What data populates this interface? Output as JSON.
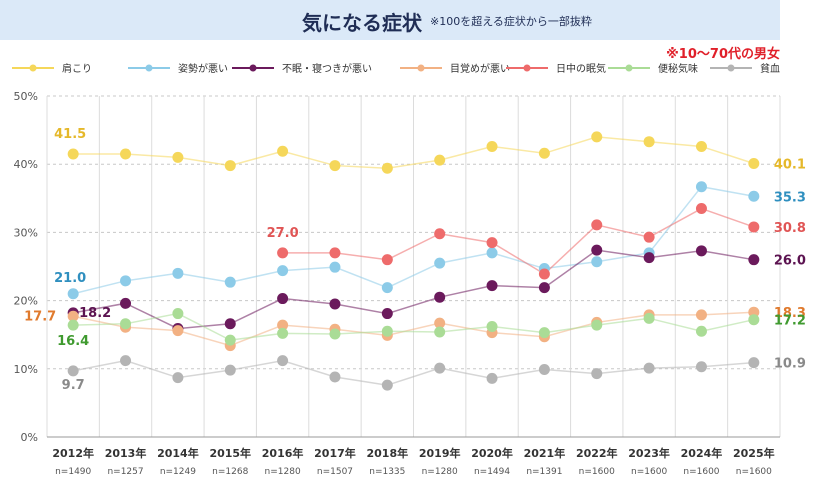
{
  "header": {
    "title": "気になる症状",
    "note": "※100を超える症状から一部抜粋",
    "subtitle": "※10～70代の男女"
  },
  "chart_data": {
    "type": "line",
    "title": "気になる症状",
    "ylim": [
      0,
      50
    ],
    "yticks": [
      "0%",
      "10%",
      "20%",
      "30%",
      "40%",
      "50%"
    ],
    "categories": [
      "2012年",
      "2013年",
      "2014年",
      "2015年",
      "2016年",
      "2017年",
      "2018年",
      "2019年",
      "2020年",
      "2021年",
      "2022年",
      "2023年",
      "2024年",
      "2025年"
    ],
    "sample_sizes": [
      "n=1490",
      "n=1257",
      "n=1249",
      "n=1268",
      "n=1280",
      "n=1507",
      "n=1335",
      "n=1280",
      "n=1494",
      "n=1391",
      "n=1600",
      "n=1600",
      "n=1600",
      "n=1600"
    ],
    "legend_position": "top",
    "grid": true,
    "series": [
      {
        "name": "肩こり",
        "color": "#f5d75a",
        "values": [
          41.5,
          41.5,
          41.0,
          39.8,
          41.9,
          39.8,
          39.4,
          40.6,
          42.6,
          41.6,
          44.0,
          43.3,
          42.6,
          40.1
        ]
      },
      {
        "name": "姿勢が悪い",
        "color": "#8ccbe8",
        "values": [
          21.0,
          22.9,
          24.0,
          22.7,
          24.4,
          24.9,
          21.9,
          25.5,
          27.0,
          24.7,
          25.7,
          27.0,
          36.7,
          35.3
        ]
      },
      {
        "name": "不眠・寝つきが悪い",
        "color": "#6b1a5c",
        "values": [
          18.2,
          19.6,
          15.9,
          16.6,
          20.3,
          19.5,
          18.1,
          20.5,
          22.2,
          21.9,
          27.4,
          26.3,
          27.3,
          26.0
        ]
      },
      {
        "name": "目覚めが悪い",
        "color": "#f2b183",
        "values": [
          17.7,
          16.1,
          15.6,
          13.4,
          16.4,
          15.8,
          14.9,
          16.7,
          15.3,
          14.7,
          16.8,
          17.9,
          17.9,
          18.3
        ]
      },
      {
        "name": "日中の眠気",
        "color": "#ee6b6b",
        "values": [
          null,
          null,
          null,
          null,
          27.0,
          27.0,
          26.0,
          29.8,
          28.5,
          23.9,
          31.1,
          29.3,
          33.5,
          30.8
        ]
      },
      {
        "name": "便秘気味",
        "color": "#aadc96",
        "values": [
          16.4,
          16.6,
          18.1,
          14.2,
          15.2,
          15.1,
          15.5,
          15.4,
          16.2,
          15.3,
          16.4,
          17.4,
          15.5,
          17.2
        ]
      },
      {
        "name": "貧血",
        "color": "#b4b4b4",
        "values": [
          9.7,
          11.2,
          8.7,
          9.8,
          11.2,
          8.8,
          7.6,
          10.1,
          8.6,
          9.9,
          9.3,
          10.1,
          10.3,
          10.9
        ]
      }
    ],
    "data_labels": [
      {
        "series": "肩こり",
        "text": "41.5"
      },
      {
        "series": "肩こり",
        "text": "40.1"
      },
      {
        "series": "姿勢が悪い",
        "text": "21.0"
      },
      {
        "series": "姿勢が悪い",
        "text": "35.3"
      },
      {
        "series": "不眠・寝つきが悪い",
        "text": "18.2"
      },
      {
        "series": "不眠・寝つきが悪い",
        "text": "26.0"
      },
      {
        "series": "目覚めが悪い",
        "text": "17.7"
      },
      {
        "series": "目覚めが悪い",
        "text": "18.3"
      },
      {
        "series": "日中の眠気",
        "text": "27.0"
      },
      {
        "series": "日中の眠気",
        "text": "30.8"
      },
      {
        "series": "便秘気味",
        "text": "16.4"
      },
      {
        "series": "便秘気味",
        "text": "17.2"
      },
      {
        "series": "貧血",
        "text": "9.7"
      },
      {
        "series": "貧血",
        "text": "10.9"
      }
    ],
    "label_colors": {
      "肩こり": "#e5b82a",
      "姿勢が悪い": "#2f8fbf",
      "不眠・寝つきが悪い": "#5b1250",
      "目覚めが悪い": "#e07a2d",
      "日中の眠気": "#e05555",
      "便秘気味": "#3f9a2f",
      "貧血": "#8a8a8a"
    }
  }
}
